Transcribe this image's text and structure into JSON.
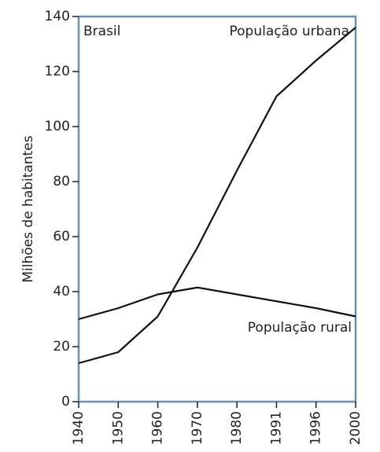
{
  "chart_data": {
    "type": "line",
    "title": "Brasil",
    "y_label": "Milhões de habitantes",
    "categories": [
      "1940",
      "1950",
      "1960",
      "1970",
      "1980",
      "1991",
      "1996",
      "2000"
    ],
    "series": [
      {
        "name": "População urbana",
        "color": "#111111",
        "values": [
          14,
          18,
          31,
          56,
          84,
          111,
          124,
          136
        ]
      },
      {
        "name": "População rural",
        "color": "#111111",
        "values": [
          30,
          34,
          39,
          41.5,
          39,
          36.5,
          34,
          31
        ]
      }
    ],
    "ylim": [
      0,
      140
    ],
    "yticks": [
      0,
      20,
      40,
      60,
      80,
      100,
      120,
      140
    ],
    "frame_color": "#6b8fb5"
  }
}
